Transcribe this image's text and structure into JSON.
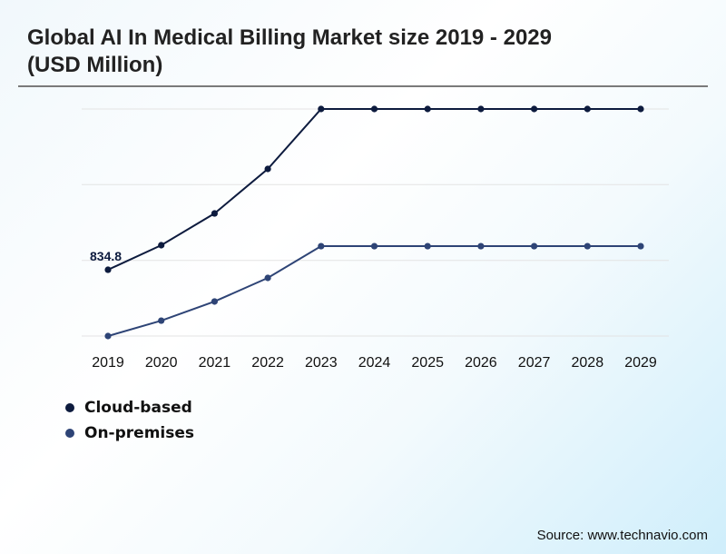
{
  "title": "Global AI In Medical Billing Market size 2019 - 2029 (USD Million)",
  "source": "Source: www.technavio.com",
  "chart_data": {
    "type": "line",
    "title": "Global AI In Medical Billing Market size 2019 - 2029 (USD Million)",
    "xlabel": "",
    "ylabel": "",
    "x": [
      "2019",
      "2020",
      "2021",
      "2022",
      "2023",
      "2024",
      "2025",
      "2026",
      "2027",
      "2028",
      "2029"
    ],
    "ylim": [
      0,
      2860
    ],
    "grid": true,
    "y_gridlines": [
      0,
      953,
      1907,
      2860
    ],
    "legend_position": "bottom-left",
    "series": [
      {
        "name": "Cloud-based",
        "color": "#0d1b3e",
        "values": [
          834.8,
          1144,
          1544,
          2105,
          2860,
          2860,
          2860,
          2860,
          2860,
          2860,
          2860
        ]
      },
      {
        "name": "On-premises",
        "color": "#2e4476",
        "values": [
          0,
          194,
          435,
          732,
          1132,
          1132,
          1132,
          1132,
          1132,
          1132,
          1132
        ]
      }
    ],
    "annotations": [
      {
        "series": "Cloud-based",
        "x": "2019",
        "text": "834.8"
      }
    ]
  }
}
